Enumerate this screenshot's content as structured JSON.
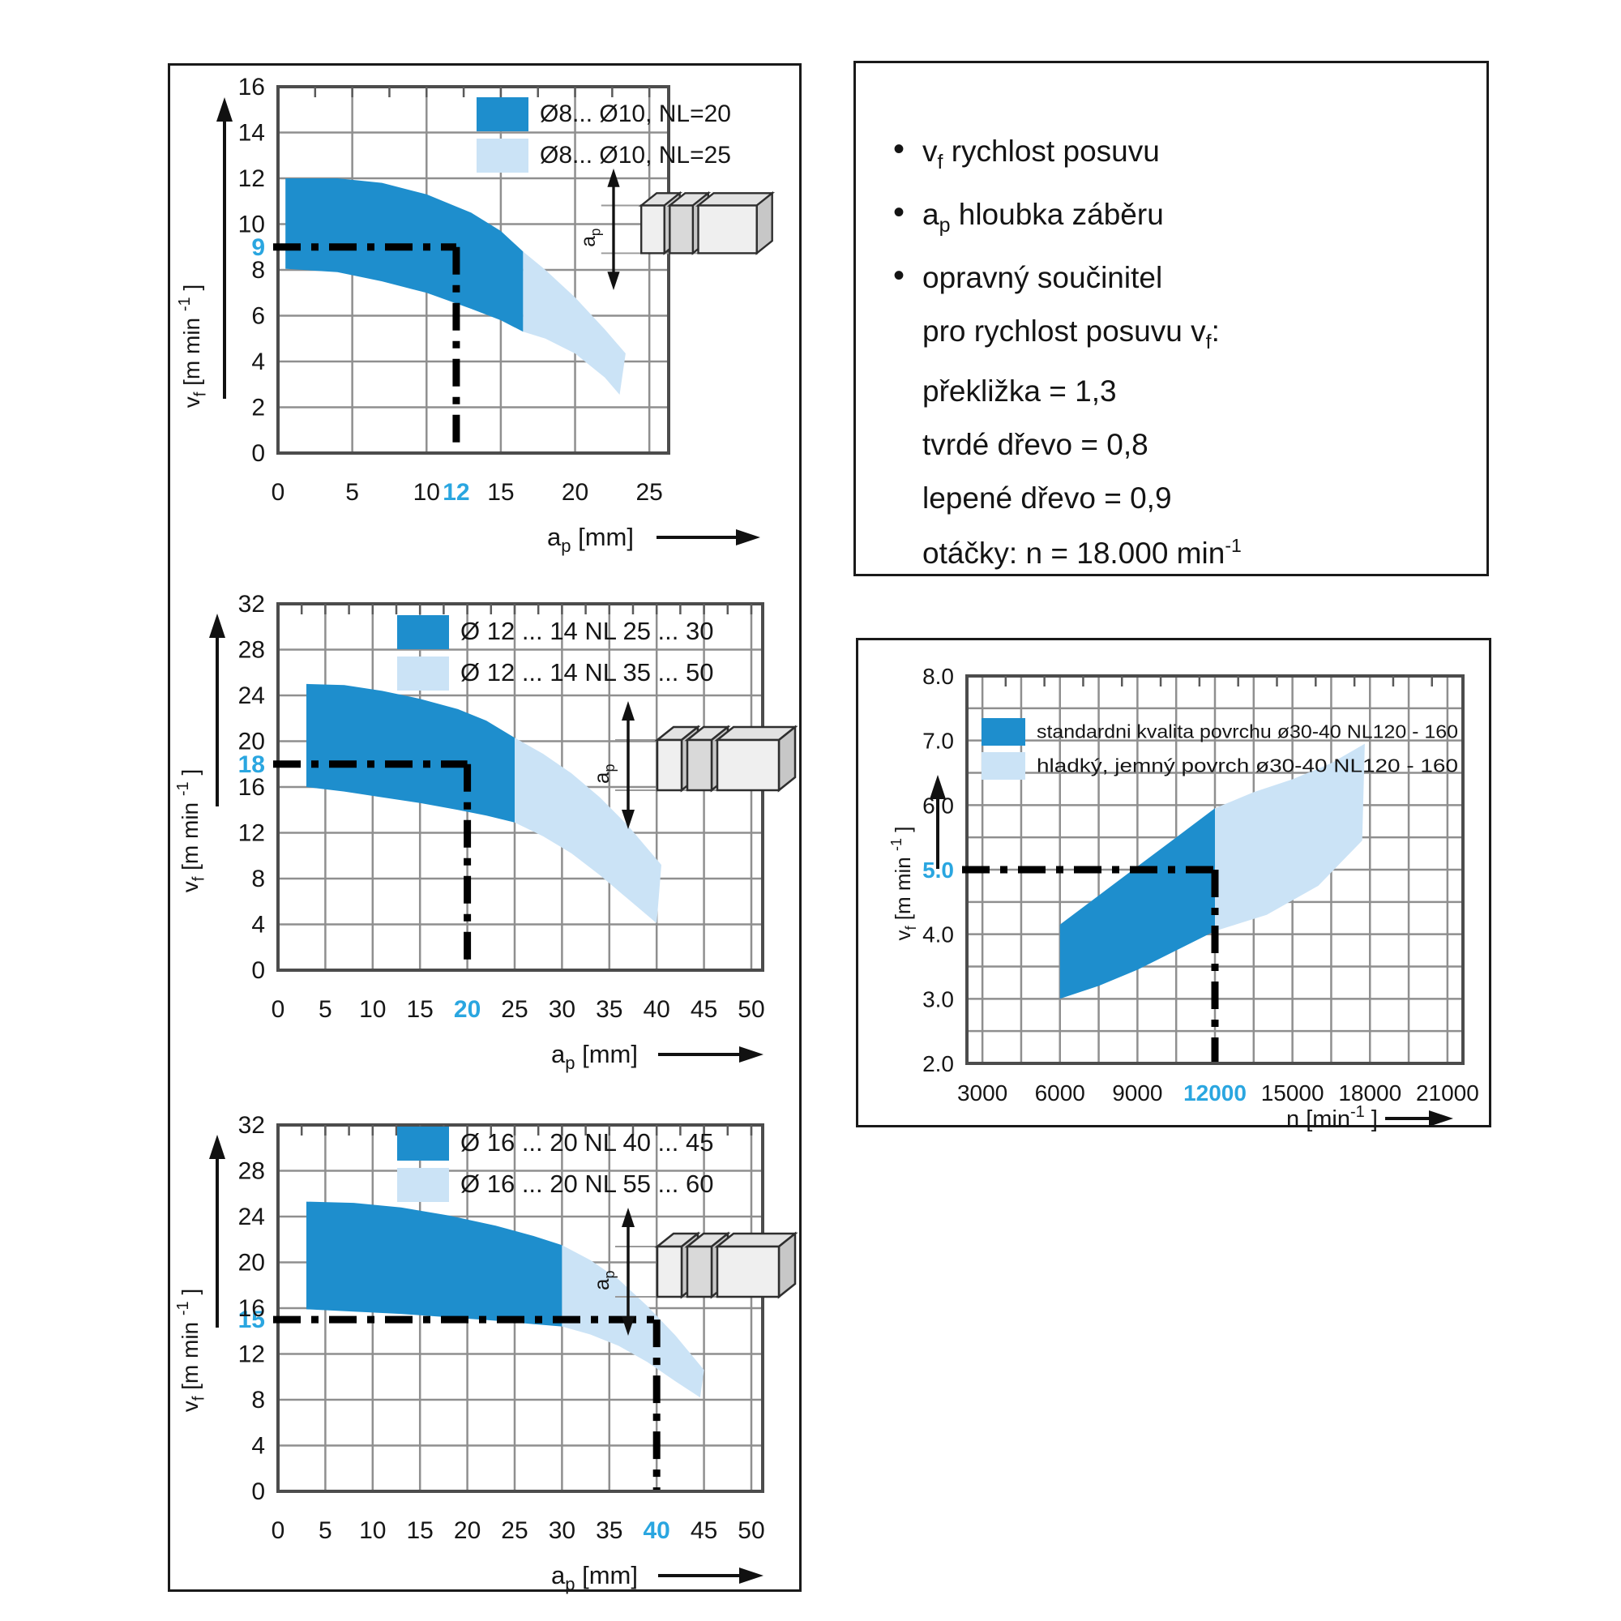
{
  "colors": {
    "band_dark": "#1e8ecd",
    "band_light": "#cbe3f6",
    "accent": "#2aa6e0",
    "grid": "#8f8f8f",
    "plot_border": "#4c4c4c",
    "box_border": "#1a1a1a",
    "text": "#161616",
    "dash": "#000000"
  },
  "notes_panel": {
    "items": [
      {
        "bullet": true,
        "segs": [
          {
            "t": "v"
          },
          {
            "sub": "f"
          },
          {
            "t": "  rychlost posuvu"
          }
        ]
      },
      {
        "bullet": true,
        "segs": [
          {
            "t": "a"
          },
          {
            "sub": "p"
          },
          {
            "t": "  hloubka záběru"
          }
        ]
      },
      {
        "bullet": true,
        "segs": [
          {
            "t": "opravný součinitel"
          }
        ]
      },
      {
        "bullet": false,
        "segs": [
          {
            "t": "pro rychlost posuvu v"
          },
          {
            "sub": "f"
          },
          {
            "t": ":"
          }
        ]
      },
      {
        "bullet": false,
        "segs": [
          {
            "t": "překližka = 1,3"
          }
        ]
      },
      {
        "bullet": false,
        "segs": [
          {
            "t": "tvrdé dřevo = 0,8"
          }
        ]
      },
      {
        "bullet": false,
        "segs": [
          {
            "t": "lepené dřevo = 0,9"
          }
        ]
      },
      {
        "bullet": false,
        "segs": [
          {
            "t": "otáčky: n = 18.000 min"
          },
          {
            "sup": "-1"
          }
        ]
      }
    ]
  },
  "chart_data": [
    {
      "id": "c1",
      "type": "area",
      "x_range": [
        0,
        26.3
      ],
      "y_range": [
        0,
        16
      ],
      "x_label_segs": [
        {
          "t": "a"
        },
        {
          "sub": "p"
        },
        {
          "t": " [mm]"
        }
      ],
      "y_label_segs": [
        {
          "t": "v"
        },
        {
          "sub": "f"
        },
        {
          "t": " [m min "
        },
        {
          "sup": "-1"
        },
        {
          "t": " ]"
        }
      ],
      "x_ticks": [
        {
          "v": 0,
          "t": "0"
        },
        {
          "v": 5,
          "t": "5"
        },
        {
          "v": 10,
          "t": "10"
        },
        {
          "v": 12,
          "t": "12",
          "accent": true
        },
        {
          "v": 15,
          "t": "15"
        },
        {
          "v": 20,
          "t": "20"
        },
        {
          "v": 25,
          "t": "25"
        }
      ],
      "y_ticks": [
        {
          "v": 0,
          "t": "0"
        },
        {
          "v": 2,
          "t": "2"
        },
        {
          "v": 4,
          "t": "4"
        },
        {
          "v": 6,
          "t": "6"
        },
        {
          "v": 8,
          "t": "8"
        },
        {
          "v": 9,
          "t": "9",
          "accent": true
        },
        {
          "v": 10,
          "t": "10"
        },
        {
          "v": 12,
          "t": "12"
        },
        {
          "v": 14,
          "t": "14"
        },
        {
          "v": 16,
          "t": "16"
        }
      ],
      "grid_x": [
        5,
        10,
        15,
        20,
        25
      ],
      "grid_y": [
        2,
        4,
        6,
        8,
        10,
        12,
        14
      ],
      "stub_step": 2.5,
      "legend": [
        {
          "series": "dark",
          "label": "Ø8... Ø10, NL=20"
        },
        {
          "series": "light",
          "label": "Ø8... Ø10, NL=25"
        }
      ],
      "operating_point": {
        "x": 12,
        "y": 9
      },
      "bands": [
        {
          "series": "dark",
          "points": [
            [
              0.5,
              12
            ],
            [
              4,
              12
            ],
            [
              7,
              11.8
            ],
            [
              10,
              11.3
            ],
            [
              13,
              10.5
            ],
            [
              15,
              9.7
            ],
            [
              16.5,
              8.8
            ],
            [
              16.5,
              5.3
            ],
            [
              15,
              5.8
            ],
            [
              13,
              6.3
            ],
            [
              10,
              7.0
            ],
            [
              7,
              7.5
            ],
            [
              4,
              7.9
            ],
            [
              0.5,
              8.05
            ]
          ]
        },
        {
          "series": "light",
          "points": [
            [
              16.5,
              8.8
            ],
            [
              18,
              8.0
            ],
            [
              20,
              6.8
            ],
            [
              22,
              5.4
            ],
            [
              23.4,
              4.35
            ],
            [
              23.0,
              2.55
            ],
            [
              22,
              3.3
            ],
            [
              20,
              4.35
            ],
            [
              18,
              5.0
            ],
            [
              16.5,
              5.3
            ]
          ]
        }
      ],
      "icon": "wood-blocks"
    },
    {
      "id": "c2",
      "type": "area",
      "x_range": [
        0,
        51.2
      ],
      "y_range": [
        0,
        32
      ],
      "x_label_segs": [
        {
          "t": "a"
        },
        {
          "sub": "p"
        },
        {
          "t": " [mm]"
        }
      ],
      "y_label_segs": [
        {
          "t": "v"
        },
        {
          "sub": "f"
        },
        {
          "t": " [m min "
        },
        {
          "sup": "-1"
        },
        {
          "t": " ]"
        }
      ],
      "x_ticks": [
        {
          "v": 0,
          "t": "0"
        },
        {
          "v": 5,
          "t": "5"
        },
        {
          "v": 10,
          "t": "10"
        },
        {
          "v": 15,
          "t": "15"
        },
        {
          "v": 20,
          "t": "20",
          "accent": true
        },
        {
          "v": 25,
          "t": "25"
        },
        {
          "v": 30,
          "t": "30"
        },
        {
          "v": 35,
          "t": "35"
        },
        {
          "v": 40,
          "t": "40"
        },
        {
          "v": 45,
          "t": "45"
        },
        {
          "v": 50,
          "t": "50"
        }
      ],
      "y_ticks": [
        {
          "v": 0,
          "t": "0"
        },
        {
          "v": 4,
          "t": "4"
        },
        {
          "v": 8,
          "t": "8"
        },
        {
          "v": 12,
          "t": "12"
        },
        {
          "v": 16,
          "t": "16"
        },
        {
          "v": 18,
          "t": "18",
          "accent": true
        },
        {
          "v": 20,
          "t": "20"
        },
        {
          "v": 24,
          "t": "24"
        },
        {
          "v": 28,
          "t": "28"
        },
        {
          "v": 32,
          "t": "32"
        }
      ],
      "grid_x": [
        5,
        10,
        15,
        20,
        25,
        30,
        35,
        40,
        45,
        50
      ],
      "grid_y": [
        4,
        8,
        12,
        16,
        20,
        24,
        28
      ],
      "stub_step": 2.5,
      "legend": [
        {
          "series": "dark",
          "label": "Ø 12 ... 14 NL 25 ... 30"
        },
        {
          "series": "light",
          "label": "Ø 12 ... 14 NL 35 ... 50"
        }
      ],
      "operating_point": {
        "x": 20,
        "y": 18
      },
      "bands": [
        {
          "series": "dark",
          "points": [
            [
              3,
              25
            ],
            [
              7,
              24.9
            ],
            [
              11,
              24.4
            ],
            [
              15,
              23.7
            ],
            [
              19,
              22.8
            ],
            [
              22,
              21.8
            ],
            [
              25,
              20.3
            ],
            [
              25,
              12.9
            ],
            [
              22,
              13.5
            ],
            [
              19,
              14.0
            ],
            [
              15,
              14.6
            ],
            [
              11,
              15.1
            ],
            [
              7,
              15.6
            ],
            [
              3,
              16
            ]
          ]
        },
        {
          "series": "light",
          "points": [
            [
              25,
              20.3
            ],
            [
              28,
              18.9
            ],
            [
              31,
              17.2
            ],
            [
              34,
              15.1
            ],
            [
              37,
              12.6
            ],
            [
              40.5,
              9.2
            ],
            [
              40,
              4.1
            ],
            [
              37,
              6.2
            ],
            [
              34,
              8.3
            ],
            [
              31,
              10.2
            ],
            [
              28,
              11.7
            ],
            [
              25,
              12.9
            ]
          ]
        }
      ],
      "icon": "wood-blocks"
    },
    {
      "id": "c3",
      "type": "area",
      "x_range": [
        0,
        51.2
      ],
      "y_range": [
        0,
        32
      ],
      "x_label_segs": [
        {
          "t": "a"
        },
        {
          "sub": "p"
        },
        {
          "t": " [mm]"
        }
      ],
      "y_label_segs": [
        {
          "t": "v"
        },
        {
          "sub": "f"
        },
        {
          "t": " [m min "
        },
        {
          "sup": "-1"
        },
        {
          "t": " ]"
        }
      ],
      "x_ticks": [
        {
          "v": 0,
          "t": "0"
        },
        {
          "v": 5,
          "t": "5"
        },
        {
          "v": 10,
          "t": "10"
        },
        {
          "v": 15,
          "t": "15"
        },
        {
          "v": 20,
          "t": "20"
        },
        {
          "v": 25,
          "t": "25"
        },
        {
          "v": 30,
          "t": "30"
        },
        {
          "v": 35,
          "t": "35"
        },
        {
          "v": 40,
          "t": "40",
          "accent": true
        },
        {
          "v": 45,
          "t": "45"
        },
        {
          "v": 50,
          "t": "50"
        }
      ],
      "y_ticks": [
        {
          "v": 0,
          "t": "0"
        },
        {
          "v": 4,
          "t": "4"
        },
        {
          "v": 8,
          "t": "8"
        },
        {
          "v": 12,
          "t": "12"
        },
        {
          "v": 15,
          "t": "15",
          "accent": true
        },
        {
          "v": 16,
          "t": "16"
        },
        {
          "v": 20,
          "t": "20"
        },
        {
          "v": 24,
          "t": "24"
        },
        {
          "v": 28,
          "t": "28"
        },
        {
          "v": 32,
          "t": "32"
        }
      ],
      "grid_x": [
        5,
        10,
        15,
        20,
        25,
        30,
        35,
        40,
        45,
        50
      ],
      "grid_y": [
        4,
        8,
        12,
        16,
        20,
        24,
        28
      ],
      "stub_step": 2.5,
      "legend": [
        {
          "series": "dark",
          "label": "Ø 16 ... 20 NL 40 ... 45"
        },
        {
          "series": "light",
          "label": "Ø 16 ... 20 NL 55 ... 60"
        }
      ],
      "operating_point": {
        "x": 40,
        "y": 15
      },
      "bands": [
        {
          "series": "dark",
          "points": [
            [
              3,
              25.3
            ],
            [
              8,
              25.2
            ],
            [
              13,
              24.8
            ],
            [
              18,
              24.1
            ],
            [
              23,
              23.2
            ],
            [
              27,
              22.3
            ],
            [
              30,
              21.5
            ],
            [
              30,
              14.4
            ],
            [
              27,
              14.6
            ],
            [
              23,
              14.9
            ],
            [
              18,
              15.2
            ],
            [
              13,
              15.5
            ],
            [
              8,
              15.7
            ],
            [
              3,
              15.9
            ]
          ]
        },
        {
          "series": "light",
          "points": [
            [
              30,
              21.5
            ],
            [
              33,
              20.2
            ],
            [
              36,
              18.5
            ],
            [
              39,
              16.2
            ],
            [
              42,
              13.6
            ],
            [
              45,
              10.6
            ],
            [
              44.6,
              8.2
            ],
            [
              42,
              9.6
            ],
            [
              39,
              11.3
            ],
            [
              36,
              12.7
            ],
            [
              33,
              13.7
            ],
            [
              30,
              14.4
            ]
          ]
        }
      ],
      "icon": "wood-blocks"
    },
    {
      "id": "c4",
      "type": "area",
      "x_range": [
        2400,
        21600
      ],
      "y_range": [
        2,
        8
      ],
      "x_label_segs": [
        {
          "t": "n"
        },
        {
          "t": " [min"
        },
        {
          "sup": "-1"
        },
        {
          "t": " ]"
        }
      ],
      "y_label_segs": [
        {
          "t": "v"
        },
        {
          "sub": "f"
        },
        {
          "t": " [m min "
        },
        {
          "sup": "-1"
        },
        {
          "t": " ]"
        }
      ],
      "x_ticks": [
        {
          "v": 3000,
          "t": "3000"
        },
        {
          "v": 6000,
          "t": "6000"
        },
        {
          "v": 9000,
          "t": "9000"
        },
        {
          "v": 12000,
          "t": "12000",
          "accent": true
        },
        {
          "v": 15000,
          "t": "15000"
        },
        {
          "v": 18000,
          "t": "18000"
        },
        {
          "v": 21000,
          "t": "21000"
        }
      ],
      "y_ticks": [
        {
          "v": 2,
          "t": "2.0"
        },
        {
          "v": 3,
          "t": "3.0"
        },
        {
          "v": 4,
          "t": "4.0"
        },
        {
          "v": 5,
          "t": "5.0",
          "accent": true
        },
        {
          "v": 6,
          "t": "6.0"
        },
        {
          "v": 7,
          "t": "7.0"
        },
        {
          "v": 8,
          "t": "8.0"
        }
      ],
      "grid_x": [
        3000,
        4500,
        6000,
        7500,
        9000,
        10500,
        12000,
        13500,
        15000,
        16500,
        18000,
        19500,
        21000
      ],
      "grid_y": [
        2.5,
        3.0,
        3.5,
        4.0,
        4.5,
        5.0,
        5.5,
        6.0,
        6.5,
        7.0,
        7.5
      ],
      "stub_step": 1500,
      "legend": [
        {
          "series": "dark",
          "label": "standardni kvalita povrchu ø30-40 NL120 - 160"
        },
        {
          "series": "light",
          "label": "hladký, jemný povrch ø30-40 NL120 - 160"
        }
      ],
      "operating_point": {
        "x": 12000,
        "y": 5
      },
      "bands": [
        {
          "series": "dark",
          "points": [
            [
              6000,
              4.15
            ],
            [
              7500,
              4.6
            ],
            [
              9000,
              5.05
            ],
            [
              10500,
              5.5
            ],
            [
              12000,
              5.95
            ],
            [
              12000,
              4.05
            ],
            [
              10500,
              3.75
            ],
            [
              9000,
              3.45
            ],
            [
              7500,
              3.2
            ],
            [
              6000,
              3.0
            ]
          ]
        },
        {
          "series": "light",
          "points": [
            [
              12000,
              5.95
            ],
            [
              13500,
              6.2
            ],
            [
              15000,
              6.4
            ],
            [
              16500,
              6.65
            ],
            [
              17800,
              6.95
            ],
            [
              17700,
              5.45
            ],
            [
              16000,
              4.75
            ],
            [
              14000,
              4.3
            ],
            [
              12000,
              4.05
            ]
          ]
        }
      ],
      "icon": null
    }
  ]
}
